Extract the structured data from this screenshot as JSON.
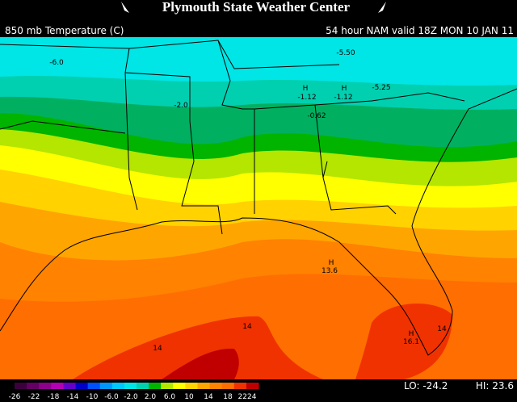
{
  "header": {
    "title": "Plymouth State Weather Center",
    "field": "850 mb Temperature (C)",
    "valid": "54 hour NAM valid 18Z MON 10 JAN 11"
  },
  "map": {
    "labels": [
      "-6.0",
      "-5.50",
      "-2.0",
      "H",
      "-1.12",
      "H",
      "-1.12",
      "-5.25",
      "-0.62",
      "H",
      "13.6",
      "14",
      "14",
      "H",
      "16.1",
      "14"
    ]
  },
  "legend": {
    "labels": [
      "-26",
      "-22",
      "-18",
      "-14",
      "-10",
      "-6.0",
      "-2.0",
      "2.0",
      "6.0",
      "10",
      "14",
      "18",
      "2224"
    ],
    "lo": "LO: -24.2",
    "hi": "HI: 23.6"
  }
}
